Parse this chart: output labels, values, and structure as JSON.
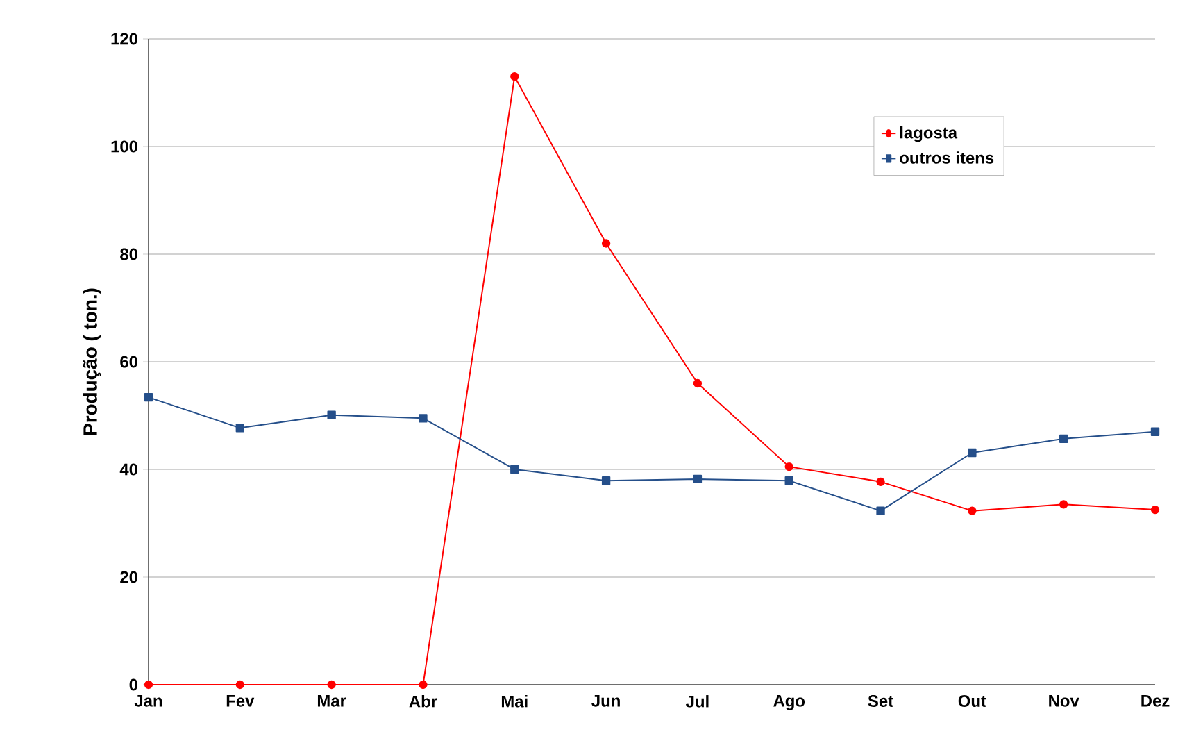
{
  "chart_data": {
    "type": "line",
    "ylabel": "Produção ( ton.)",
    "categories": [
      "Jan",
      "Fev",
      "Mar",
      "Abr",
      "Mai",
      "Jun",
      "Jul",
      "Ago",
      "Set",
      "Out",
      "Nov",
      "Dez"
    ],
    "series": [
      {
        "name": "lagosta",
        "color": "#ff0000",
        "marker": "circle",
        "values": [
          0,
          0,
          0,
          0,
          113,
          82,
          56,
          40.5,
          37.7,
          32.3,
          33.5,
          32.5
        ]
      },
      {
        "name": "outros itens",
        "color": "#254f8a",
        "marker": "square",
        "values": [
          53.4,
          47.7,
          50.1,
          49.5,
          40,
          37.9,
          38.2,
          37.9,
          32.3,
          43.1,
          45.7,
          47
        ]
      }
    ],
    "ylim": [
      0,
      120
    ],
    "yticks": [
      0,
      20,
      40,
      60,
      80,
      100,
      120
    ],
    "grid": "y",
    "legend": "top right"
  }
}
